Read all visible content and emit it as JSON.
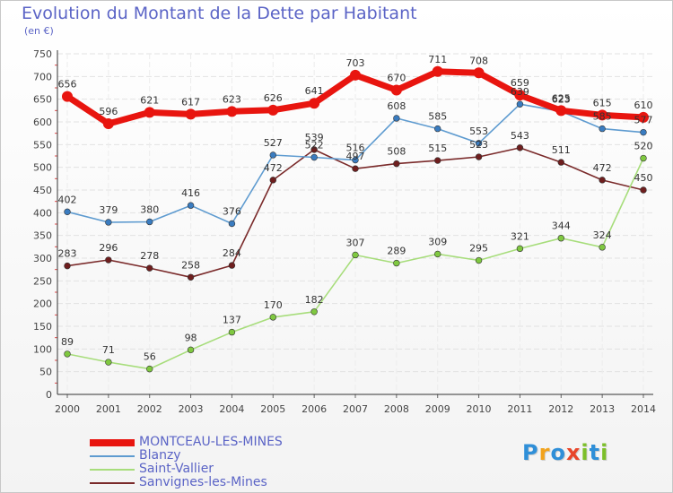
{
  "title": "Evolution du Montant de la Dette par Habitant",
  "subtitle": "(en €)",
  "logo": {
    "letters": [
      {
        "ch": "P",
        "color": "#2f8fd8"
      },
      {
        "ch": "r",
        "color": "#f2a31c"
      },
      {
        "ch": "o",
        "color": "#2f8fd8"
      },
      {
        "ch": "x",
        "color": "#e8462a"
      },
      {
        "ch": "i",
        "color": "#7cbf2a"
      },
      {
        "ch": "t",
        "color": "#2f8fd8"
      },
      {
        "ch": "i",
        "color": "#7cbf2a"
      }
    ]
  },
  "chart_data": {
    "type": "line",
    "title": "Evolution du Montant de la Dette par Habitant",
    "subtitle": "(en €)",
    "xlabel": "",
    "ylabel": "",
    "x": [
      "2000",
      "2001",
      "2002",
      "2003",
      "2004",
      "2005",
      "2006",
      "2007",
      "2008",
      "2009",
      "2010",
      "2011",
      "2012",
      "2013",
      "2014"
    ],
    "ylim": [
      0,
      750
    ],
    "yticks": [
      "0",
      "50",
      "100",
      "150",
      "200",
      "250",
      "300",
      "350",
      "400",
      "450",
      "500",
      "550",
      "600",
      "650",
      "700",
      "750"
    ],
    "grid": true,
    "legend": "bottom-left",
    "series": [
      {
        "name": "MONTCEAU-LES-MINES",
        "color": "#e8150f",
        "point_color": "#e8150f",
        "values": [
          656,
          596,
          621,
          617,
          623,
          626,
          641,
          703,
          670,
          711,
          708,
          659,
          625,
          615,
          610
        ],
        "labels": [
          "656",
          "596",
          "621",
          "617",
          "623",
          "626",
          "641",
          "703",
          "670",
          "711",
          "708",
          "659",
          "625",
          "615",
          "610"
        ]
      },
      {
        "name": "Blanzy",
        "color": "#5e9bd0",
        "point_color": "#3a7cc0",
        "values": [
          402,
          379,
          380,
          416,
          376,
          527,
          522,
          516,
          608,
          585,
          553,
          639,
          623,
          585,
          577
        ],
        "labels": [
          "402",
          "379",
          "380",
          "416",
          "376",
          "527",
          "522",
          "516",
          "608",
          "585",
          "553",
          "639",
          "623",
          "585",
          "577"
        ]
      },
      {
        "name": "Saint-Vallier",
        "color": "#a7dd7b",
        "point_color": "#7fc840",
        "values": [
          89,
          71,
          56,
          98,
          137,
          170,
          182,
          307,
          289,
          309,
          295,
          321,
          344,
          324,
          520
        ],
        "labels": [
          "89",
          "71",
          "56",
          "98",
          "137",
          "170",
          "182",
          "307",
          "289",
          "309",
          "295",
          "321",
          "344",
          "324",
          "520"
        ]
      },
      {
        "name": "Sanvignes-les-Mines",
        "color": "#7a2a2a",
        "point_color": "#6e1e1e",
        "values": [
          283,
          296,
          278,
          258,
          284,
          472,
          539,
          497,
          508,
          515,
          523,
          543,
          511,
          472,
          450
        ],
        "labels": [
          "283",
          "296",
          "278",
          "258",
          "284",
          "472",
          "539",
          "497",
          "508",
          "515",
          "523",
          "543",
          "511",
          "472",
          "450"
        ]
      }
    ]
  }
}
